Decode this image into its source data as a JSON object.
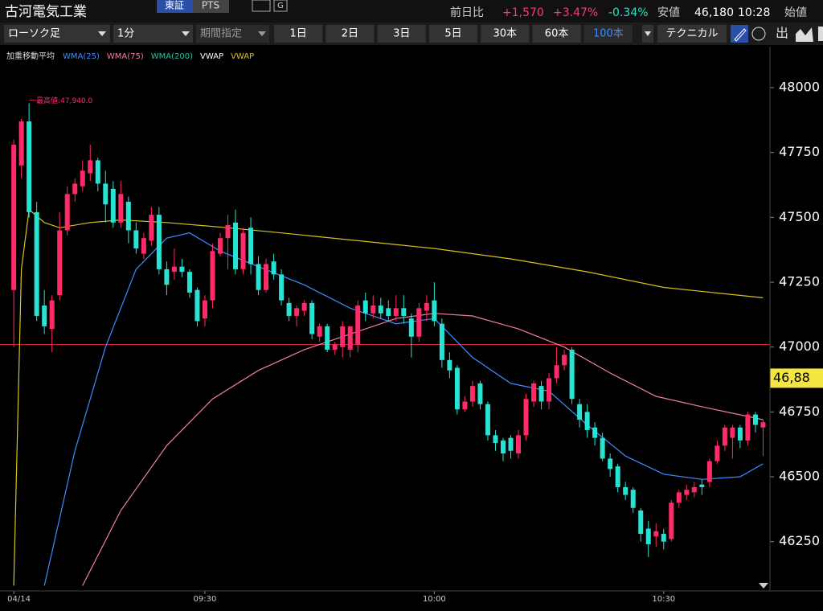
{
  "header": {
    "title": "古河電気工業",
    "market": "東証",
    "pts": "PTS",
    "badge": "G",
    "change_label": "前日比",
    "change": "+1,570",
    "change_pct": "+3.47%",
    "other_pct": "-0.34%",
    "low_label": "安値",
    "low": "46,180",
    "time": "10:28",
    "open_label": "始値"
  },
  "toolbar": {
    "chart_style": "ローソク足",
    "interval": "1分",
    "period": "期間指定",
    "ranges": [
      "1日",
      "2日",
      "3日",
      "5日",
      "30本",
      "60本",
      "100本"
    ],
    "technical": "テクニカル",
    "icon_label": "出"
  },
  "chart_data": {
    "type": "candlestick",
    "legend_title": "加重移動平均",
    "annotation": "一最高値:47,940.0",
    "up_color": "#ff2a68",
    "down_color": "#27e3d3",
    "ylim": [
      46060,
      48090
    ],
    "xlim": [
      -1.8,
      98.9
    ],
    "yticks": [
      46250,
      46500,
      46750,
      47000,
      47250,
      47500,
      47750,
      48000
    ],
    "xticks": [
      {
        "value": 0,
        "label": "04/14"
      },
      {
        "value": 25,
        "label": "09:30"
      },
      {
        "value": 55,
        "label": "10:00"
      },
      {
        "value": 85,
        "label": "10:30"
      }
    ],
    "reference_line": 47010,
    "price_tag": {
      "value": 46880,
      "label": "46,88"
    },
    "open": [
      47220,
      47700,
      47870,
      47520,
      47160,
      47070,
      47200,
      47450,
      47590,
      47620,
      47670,
      47720,
      47630,
      47610,
      47480,
      47560,
      47450,
      47360,
      47410,
      47510,
      47300,
      47290,
      47310,
      47290,
      47220,
      47110,
      47180,
      47360,
      47420,
      47480,
      47300,
      47460,
      47320,
      47220,
      47330,
      47280,
      47170,
      47120,
      47140,
      47170,
      47040,
      47080,
      46990,
      47000,
      46990,
      47010,
      47180,
      47130,
      47160,
      47150,
      47120,
      47150,
      47110,
      47040,
      47140,
      47180,
      47090,
      46950,
      46920,
      46760,
      46790,
      46860,
      46780,
      46660,
      46640,
      46650,
      46590,
      46660,
      46790,
      46850,
      46790,
      46880,
      46930,
      46990,
      46780,
      46750,
      46690,
      46650,
      46570,
      46540,
      46460,
      46450,
      46370,
      46300,
      46270,
      46280,
      46260,
      46400,
      46430,
      46440,
      46470,
      46480,
      46560,
      46620,
      46650,
      46690,
      46640,
      46740,
      46690
    ],
    "high": [
      47800,
      47880,
      47940,
      47560,
      47220,
      47200,
      47520,
      47620,
      47650,
      47720,
      47780,
      47730,
      47680,
      47640,
      47640,
      47580,
      47480,
      47440,
      47540,
      47540,
      47330,
      47380,
      47340,
      47300,
      47230,
      47200,
      47400,
      47440,
      47510,
      47530,
      47460,
      47500,
      47350,
      47340,
      47360,
      47300,
      47190,
      47160,
      47180,
      47180,
      47090,
      47090,
      47020,
      47100,
      47080,
      47180,
      47210,
      47200,
      47190,
      47180,
      47200,
      47200,
      47130,
      47170,
      47200,
      47250,
      47110,
      46980,
      46930,
      46810,
      46870,
      46870,
      46790,
      46680,
      46650,
      46660,
      46680,
      46820,
      46870,
      46870,
      46900,
      47000,
      46990,
      47000,
      46800,
      46780,
      46710,
      46670,
      46590,
      46550,
      46480,
      46460,
      46380,
      46330,
      46320,
      46300,
      46410,
      46450,
      46470,
      46480,
      46490,
      46570,
      46640,
      46700,
      46700,
      46700,
      46750,
      46750,
      46720
    ],
    "low": [
      47000,
      47650,
      47500,
      47100,
      47050,
      46980,
      47180,
      47430,
      47560,
      47600,
      47640,
      47600,
      47480,
      47460,
      47460,
      47400,
      47360,
      47340,
      47390,
      47280,
      47200,
      47260,
      47270,
      47190,
      47080,
      47080,
      47150,
      47350,
      47300,
      47280,
      47280,
      47280,
      47200,
      47210,
      47260,
      47160,
      47100,
      47080,
      47120,
      47030,
      47020,
      46980,
      46970,
      46960,
      46960,
      46980,
      47100,
      47110,
      47110,
      47100,
      47100,
      47090,
      46960,
      47020,
      47100,
      47080,
      46920,
      46880,
      46740,
      46750,
      46770,
      46760,
      46640,
      46600,
      46560,
      46570,
      46570,
      46640,
      46770,
      46760,
      46760,
      46860,
      46910,
      46780,
      46690,
      46650,
      46620,
      46560,
      46500,
      46440,
      46410,
      46360,
      46250,
      46190,
      46230,
      46220,
      46250,
      46380,
      46410,
      46420,
      46430,
      46460,
      46550,
      46600,
      46570,
      46610,
      46620,
      46670,
      46580
    ],
    "close": [
      47780,
      47870,
      47520,
      47120,
      47080,
      47180,
      47450,
      47590,
      47630,
      47680,
      47720,
      47630,
      47550,
      47480,
      47590,
      47450,
      47380,
      47420,
      47510,
      47300,
      47240,
      47310,
      47290,
      47210,
      47100,
      47180,
      47370,
      47420,
      47470,
      47300,
      47440,
      47320,
      47220,
      47320,
      47280,
      47180,
      47120,
      47150,
      47170,
      47050,
      47080,
      46990,
      47010,
      47080,
      47080,
      47160,
      47130,
      47160,
      47130,
      47120,
      47150,
      47120,
      47040,
      47150,
      47170,
      47100,
      46950,
      46910,
      46760,
      46790,
      46850,
      46780,
      46660,
      46630,
      46590,
      46600,
      46660,
      46800,
      46860,
      46790,
      46880,
      46930,
      46970,
      46800,
      46720,
      46680,
      46650,
      46570,
      46530,
      46460,
      46430,
      46380,
      46280,
      46240,
      46290,
      46250,
      46400,
      46440,
      46450,
      46460,
      46460,
      46560,
      46620,
      46690,
      46690,
      46640,
      46740,
      46700,
      46710
    ],
    "series": [
      {
        "name": "WMA(25)",
        "color": "#3f8cff",
        "x": [
          4,
          8,
          12,
          16,
          20,
          23,
          27,
          32,
          38,
          44,
          50,
          55,
          60,
          65,
          70,
          75,
          80,
          85,
          90,
          95,
          98
        ],
        "values": [
          46080,
          46600,
          47000,
          47300,
          47420,
          47440,
          47370,
          47310,
          47240,
          47150,
          47090,
          47110,
          46960,
          46860,
          46830,
          46700,
          46580,
          46510,
          46490,
          46500,
          46550
        ]
      },
      {
        "name": "WMA(75)",
        "color": "#f07fa0",
        "x": [
          9,
          14,
          20,
          26,
          32,
          38,
          44,
          50,
          55,
          60,
          66,
          72,
          78,
          84,
          90,
          98
        ],
        "values": [
          46080,
          46370,
          46620,
          46800,
          46910,
          46990,
          47050,
          47110,
          47130,
          47120,
          47070,
          47000,
          46900,
          46810,
          46770,
          46720
        ]
      },
      {
        "name": "WMA(200)",
        "color": "#2fbf9f"
      },
      {
        "name": "VWAP",
        "color": "#ffffff"
      },
      {
        "name": "VWAP",
        "color": "#d8c21a",
        "x": [
          0,
          1,
          2,
          4,
          6,
          10,
          14,
          20,
          28,
          35,
          45,
          55,
          65,
          75,
          85,
          98
        ],
        "values": [
          46080,
          47300,
          47530,
          47480,
          47460,
          47480,
          47490,
          47480,
          47460,
          47440,
          47410,
          47380,
          47340,
          47290,
          47230,
          47190
        ]
      }
    ]
  }
}
